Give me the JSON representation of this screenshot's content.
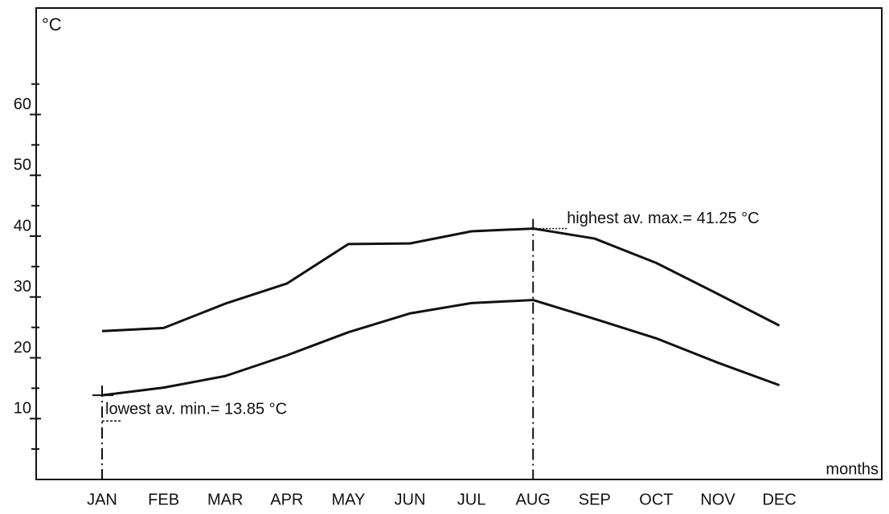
{
  "chart_data": {
    "type": "line",
    "y_label": "°C",
    "x_label": "months",
    "categories": [
      "JAN",
      "FEB",
      "MAR",
      "APR",
      "MAY",
      "JUN",
      "JUL",
      "AUG",
      "SEP",
      "OCT",
      "NOV",
      "DEC"
    ],
    "series": [
      {
        "color": "#111111",
        "values": [
          24.4,
          24.9,
          28.9,
          32.2,
          38.7,
          38.8,
          40.8,
          41.25,
          39.6,
          35.6,
          30.5,
          25.3
        ]
      },
      {
        "color": "#111111",
        "values": [
          13.85,
          15.1,
          17.0,
          20.4,
          24.2,
          27.3,
          29.0,
          29.5,
          26.4,
          23.2,
          19.2,
          15.5
        ]
      }
    ],
    "ylim": [
      0,
      77.5
    ],
    "yticks": [
      10,
      20,
      30,
      40,
      50,
      60
    ],
    "minor_yticks": [
      5,
      15,
      25,
      35,
      45,
      55,
      65
    ],
    "annotations": [
      {
        "text": "highest av. max.= 41.25 °C"
      },
      {
        "text": "lowest av. min.= 13.85 °C"
      }
    ]
  }
}
